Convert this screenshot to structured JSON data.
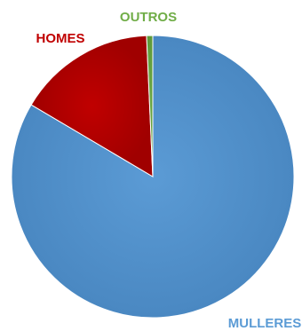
{
  "chart_data": {
    "type": "pie",
    "title": "",
    "categories": [
      "MULLERES",
      "HOMES",
      "OUTROS"
    ],
    "values": [
      83.5,
      15.8,
      0.7
    ],
    "slice_colors": [
      "#5b9bd5",
      "#c00000",
      "#70ad47"
    ],
    "label_colors": [
      "#5b9bd5",
      "#c00000",
      "#70ad47"
    ],
    "legend": "none",
    "data_labels": "category-name"
  }
}
